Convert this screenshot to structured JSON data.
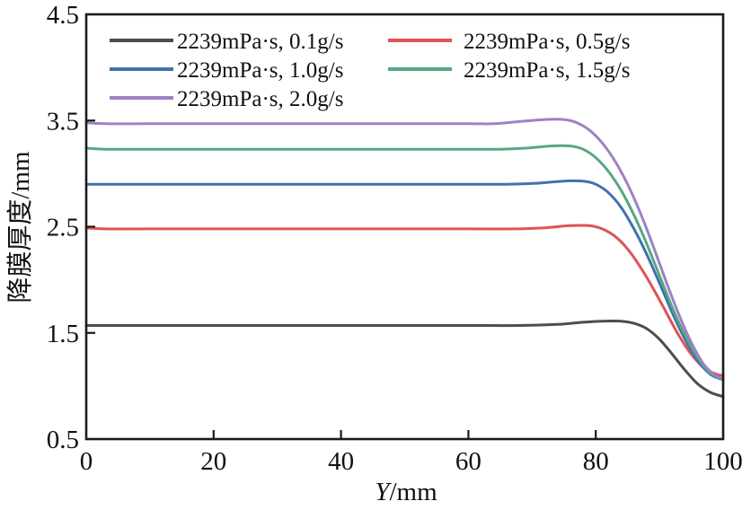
{
  "figure": {
    "title": "",
    "background": "#ffffff",
    "axis_color": "#1a1a1a"
  },
  "chart_data": {
    "type": "line",
    "title": "",
    "xlabel": "Y/mm",
    "xlabel_parts": {
      "var": "Y",
      "unit": "/mm"
    },
    "ylabel": "降膜厚度/mm",
    "xlim": [
      0,
      100
    ],
    "ylim": [
      0.5,
      4.5
    ],
    "xticks": [
      0,
      20,
      40,
      60,
      80,
      100
    ],
    "xtick_labels": [
      "0",
      "20",
      "40",
      "60",
      "80",
      "100"
    ],
    "yticks": [
      0.5,
      1.5,
      2.5,
      3.5,
      4.5
    ],
    "ytick_labels": [
      "0.5",
      "1.5",
      "2.5",
      "3.5",
      "4.5"
    ],
    "grid": false,
    "legend_position": "upper left, two columns",
    "series": [
      {
        "name": "2239mPa·s, 0.1g/s",
        "slug": "0-1gs",
        "color": "#4d4d4d",
        "plateau_value": 1.57,
        "end_value": 0.9,
        "points": [
          [
            0,
            1.57
          ],
          [
            10,
            1.57
          ],
          [
            20,
            1.57
          ],
          [
            30,
            1.57
          ],
          [
            40,
            1.57
          ],
          [
            50,
            1.57
          ],
          [
            60,
            1.57
          ],
          [
            68,
            1.57
          ],
          [
            74,
            1.58
          ],
          [
            78,
            1.6
          ],
          [
            81,
            1.61
          ],
          [
            84,
            1.61
          ],
          [
            86,
            1.59
          ],
          [
            88,
            1.54
          ],
          [
            90,
            1.44
          ],
          [
            92,
            1.3
          ],
          [
            94,
            1.15
          ],
          [
            96,
            1.02
          ],
          [
            98,
            0.94
          ],
          [
            100,
            0.9
          ]
        ]
      },
      {
        "name": "2239mPa·s, 0.5g/s",
        "slug": "0-5gs",
        "color": "#e05255",
        "plateau_value": 2.48,
        "end_value": 1.1,
        "points": [
          [
            0,
            2.49
          ],
          [
            3,
            2.48
          ],
          [
            10,
            2.48
          ],
          [
            20,
            2.48
          ],
          [
            30,
            2.48
          ],
          [
            40,
            2.48
          ],
          [
            50,
            2.48
          ],
          [
            60,
            2.48
          ],
          [
            68,
            2.48
          ],
          [
            72,
            2.49
          ],
          [
            76,
            2.51
          ],
          [
            79,
            2.51
          ],
          [
            81,
            2.48
          ],
          [
            83,
            2.41
          ],
          [
            85,
            2.29
          ],
          [
            87,
            2.12
          ],
          [
            89,
            1.92
          ],
          [
            91,
            1.7
          ],
          [
            93,
            1.48
          ],
          [
            95,
            1.3
          ],
          [
            97,
            1.17
          ],
          [
            99,
            1.11
          ],
          [
            100,
            1.1
          ]
        ]
      },
      {
        "name": "2239mPa·s, 1.0g/s",
        "slug": "1-0gs",
        "color": "#3f72af",
        "plateau_value": 2.9,
        "end_value": 1.06,
        "points": [
          [
            0,
            2.9
          ],
          [
            10,
            2.9
          ],
          [
            20,
            2.9
          ],
          [
            30,
            2.9
          ],
          [
            40,
            2.9
          ],
          [
            50,
            2.9
          ],
          [
            60,
            2.9
          ],
          [
            66,
            2.9
          ],
          [
            71,
            2.91
          ],
          [
            75,
            2.93
          ],
          [
            78,
            2.93
          ],
          [
            80,
            2.9
          ],
          [
            82,
            2.82
          ],
          [
            84,
            2.68
          ],
          [
            86,
            2.48
          ],
          [
            88,
            2.24
          ],
          [
            90,
            1.97
          ],
          [
            92,
            1.69
          ],
          [
            94,
            1.44
          ],
          [
            96,
            1.24
          ],
          [
            98,
            1.11
          ],
          [
            100,
            1.06
          ]
        ]
      },
      {
        "name": "2239mPa·s, 1.5g/s",
        "slug": "1-5gs",
        "color": "#55a87e",
        "plateau_value": 3.23,
        "end_value": 1.07,
        "points": [
          [
            0,
            3.24
          ],
          [
            3,
            3.23
          ],
          [
            10,
            3.23
          ],
          [
            20,
            3.23
          ],
          [
            30,
            3.23
          ],
          [
            40,
            3.23
          ],
          [
            50,
            3.23
          ],
          [
            60,
            3.23
          ],
          [
            65,
            3.23
          ],
          [
            69,
            3.24
          ],
          [
            73,
            3.26
          ],
          [
            76,
            3.26
          ],
          [
            78,
            3.23
          ],
          [
            80,
            3.15
          ],
          [
            82,
            3.02
          ],
          [
            84,
            2.84
          ],
          [
            86,
            2.61
          ],
          [
            88,
            2.34
          ],
          [
            90,
            2.04
          ],
          [
            92,
            1.74
          ],
          [
            94,
            1.48
          ],
          [
            96,
            1.27
          ],
          [
            98,
            1.12
          ],
          [
            100,
            1.07
          ]
        ]
      },
      {
        "name": "2239mPa·s, 2.0g/s",
        "slug": "2-0gs",
        "color": "#9e82c3",
        "plateau_value": 3.47,
        "end_value": 1.08,
        "points": [
          [
            0,
            3.48
          ],
          [
            3,
            3.47
          ],
          [
            10,
            3.47
          ],
          [
            20,
            3.47
          ],
          [
            30,
            3.47
          ],
          [
            40,
            3.47
          ],
          [
            50,
            3.47
          ],
          [
            60,
            3.47
          ],
          [
            64,
            3.47
          ],
          [
            68,
            3.49
          ],
          [
            72,
            3.51
          ],
          [
            75,
            3.51
          ],
          [
            77,
            3.48
          ],
          [
            79,
            3.41
          ],
          [
            81,
            3.29
          ],
          [
            83,
            3.12
          ],
          [
            85,
            2.9
          ],
          [
            87,
            2.63
          ],
          [
            89,
            2.32
          ],
          [
            91,
            1.99
          ],
          [
            93,
            1.68
          ],
          [
            95,
            1.41
          ],
          [
            97,
            1.2
          ],
          [
            99,
            1.09
          ],
          [
            100,
            1.08
          ]
        ]
      }
    ]
  }
}
